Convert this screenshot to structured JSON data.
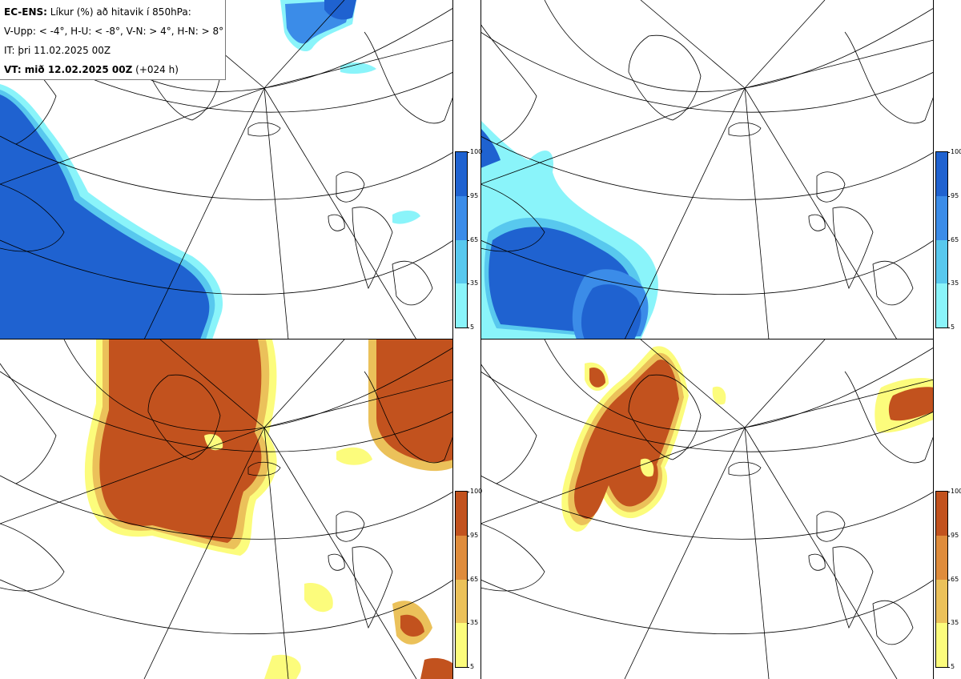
{
  "header": {
    "model_label": "EC-ENS:",
    "title_text": "Líkur (%) að hitavik í 850hPa:",
    "thresholds": "V-Upp: < -4°, H-U: < -8°, V-N: > 4°, H-N: > 8°",
    "initial_time": "IT: þri 11.02.2025 00Z",
    "valid_label": "VT: mið 12.02.2025 00Z",
    "valid_offset": "(+024 h)"
  },
  "panels": [
    {
      "id": "V-Upp",
      "threshold": "< -4°",
      "colorscale": "blue"
    },
    {
      "id": "H-U",
      "threshold": "< -8°",
      "colorscale": "blue"
    },
    {
      "id": "V-N",
      "threshold": "> 4°",
      "colorscale": "brown"
    },
    {
      "id": "H-N",
      "threshold": "> 8°",
      "colorscale": "brown"
    }
  ],
  "legend": {
    "ticks": [
      "100",
      "95",
      "65",
      "35",
      "5"
    ],
    "blue_colors": [
      "#1f62d0",
      "#3b8ce8",
      "#58c8ee",
      "#8af4fa"
    ],
    "brown_colors": [
      "#c2521e",
      "#df8c3c",
      "#ebc15a",
      "#fcfc7c"
    ]
  },
  "colors": {
    "coast": "#000000",
    "grid": "#000000"
  }
}
